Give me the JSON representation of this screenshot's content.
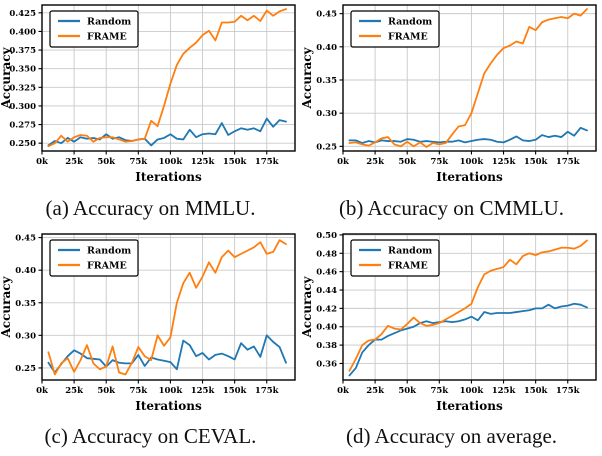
{
  "colors": {
    "random": "#1f77b4",
    "frame": "#ff7f0e",
    "grid": "#c9c9c9",
    "axis": "#000000",
    "background": "#ffffff"
  },
  "legend": {
    "entries": [
      "Random",
      "FRAME"
    ],
    "position": "upper-left"
  },
  "chart_data": [
    {
      "type": "line",
      "caption": "(a) Accuracy on MMLU.",
      "xlabel": "Iterations",
      "ylabel": "Accuracy",
      "grid": true,
      "legend_position": "upper-left",
      "xlim": [
        0,
        197
      ],
      "ylim": [
        0.2395,
        0.4355
      ],
      "xticks": [
        0,
        25,
        50,
        75,
        100,
        125,
        150,
        175
      ],
      "xtick_labels": [
        "0k",
        "25k",
        "50k",
        "75k",
        "100k",
        "125k",
        "150k",
        "175k"
      ],
      "yticks": [
        0.25,
        0.275,
        0.3,
        0.325,
        0.35,
        0.375,
        0.4,
        0.425
      ],
      "ytick_labels": [
        "0.250",
        "0.275",
        "0.300",
        "0.325",
        "0.350",
        "0.375",
        "0.400",
        "0.425"
      ],
      "x": [
        5,
        10,
        15,
        20,
        25,
        30,
        35,
        40,
        45,
        50,
        55,
        60,
        65,
        70,
        75,
        80,
        85,
        90,
        95,
        100,
        105,
        110,
        115,
        120,
        125,
        130,
        135,
        140,
        145,
        150,
        155,
        160,
        165,
        170,
        175,
        180,
        185,
        190
      ],
      "series": [
        {
          "name": "Random",
          "color_key": "random",
          "values": [
            0.247,
            0.253,
            0.25,
            0.257,
            0.252,
            0.258,
            0.256,
            0.257,
            0.255,
            0.262,
            0.256,
            0.258,
            0.254,
            0.253,
            0.255,
            0.256,
            0.247,
            0.255,
            0.257,
            0.262,
            0.256,
            0.255,
            0.268,
            0.258,
            0.262,
            0.263,
            0.262,
            0.277,
            0.261,
            0.266,
            0.27,
            0.268,
            0.27,
            0.266,
            0.283,
            0.272,
            0.281,
            0.279
          ]
        },
        {
          "name": "FRAME",
          "color_key": "frame",
          "values": [
            0.246,
            0.25,
            0.26,
            0.252,
            0.258,
            0.261,
            0.26,
            0.252,
            0.257,
            0.258,
            0.258,
            0.255,
            0.252,
            0.253,
            0.255,
            0.256,
            0.28,
            0.273,
            0.3,
            0.33,
            0.355,
            0.37,
            0.378,
            0.385,
            0.395,
            0.401,
            0.388,
            0.412,
            0.412,
            0.413,
            0.421,
            0.415,
            0.421,
            0.414,
            0.428,
            0.421,
            0.427,
            0.43
          ]
        }
      ]
    },
    {
      "type": "line",
      "caption": "(b) Accuracy on CMMLU.",
      "xlabel": "Iterations",
      "ylabel": "Accuracy",
      "grid": true,
      "legend_position": "upper-left",
      "xlim": [
        0,
        197
      ],
      "ylim": [
        0.243,
        0.463
      ],
      "xticks": [
        0,
        25,
        50,
        75,
        100,
        125,
        150,
        175
      ],
      "xtick_labels": [
        "0k",
        "25k",
        "50k",
        "75k",
        "100k",
        "125k",
        "150k",
        "175k"
      ],
      "yticks": [
        0.25,
        0.3,
        0.35,
        0.4,
        0.45
      ],
      "ytick_labels": [
        "0.25",
        "0.30",
        "0.35",
        "0.40",
        "0.45"
      ],
      "x": [
        5,
        10,
        15,
        20,
        25,
        30,
        35,
        40,
        45,
        50,
        55,
        60,
        65,
        70,
        75,
        80,
        85,
        90,
        95,
        100,
        105,
        110,
        115,
        120,
        125,
        130,
        135,
        140,
        145,
        150,
        155,
        160,
        165,
        170,
        175,
        180,
        185,
        190
      ],
      "series": [
        {
          "name": "Random",
          "color_key": "random",
          "values": [
            0.259,
            0.259,
            0.255,
            0.258,
            0.256,
            0.259,
            0.258,
            0.258,
            0.257,
            0.261,
            0.26,
            0.257,
            0.258,
            0.257,
            0.256,
            0.257,
            0.257,
            0.259,
            0.256,
            0.258,
            0.26,
            0.261,
            0.26,
            0.257,
            0.256,
            0.26,
            0.265,
            0.259,
            0.258,
            0.26,
            0.267,
            0.264,
            0.266,
            0.264,
            0.272,
            0.266,
            0.278,
            0.274
          ]
        },
        {
          "name": "FRAME",
          "color_key": "frame",
          "values": [
            0.255,
            0.256,
            0.253,
            0.251,
            0.256,
            0.262,
            0.264,
            0.253,
            0.25,
            0.257,
            0.25,
            0.256,
            0.249,
            0.255,
            0.253,
            0.255,
            0.268,
            0.28,
            0.282,
            0.3,
            0.33,
            0.36,
            0.375,
            0.388,
            0.398,
            0.402,
            0.408,
            0.405,
            0.43,
            0.425,
            0.437,
            0.441,
            0.443,
            0.445,
            0.443,
            0.45,
            0.447,
            0.457
          ]
        }
      ]
    },
    {
      "type": "line",
      "caption": "(c) Accuracy on CEVAL.",
      "xlabel": "Iterations",
      "ylabel": "Accuracy",
      "grid": true,
      "legend_position": "upper-left",
      "xlim": [
        0,
        197
      ],
      "ylim": [
        0.2315,
        0.4555
      ],
      "xticks": [
        0,
        25,
        50,
        75,
        100,
        125,
        150,
        175
      ],
      "xtick_labels": [
        "0k",
        "25k",
        "50k",
        "75k",
        "100k",
        "125k",
        "150k",
        "175k"
      ],
      "yticks": [
        0.25,
        0.3,
        0.35,
        0.4,
        0.45
      ],
      "ytick_labels": [
        "0.25",
        "0.30",
        "0.35",
        "0.40",
        "0.45"
      ],
      "x": [
        5,
        10,
        15,
        20,
        25,
        30,
        35,
        40,
        45,
        50,
        55,
        60,
        65,
        70,
        75,
        80,
        85,
        90,
        95,
        100,
        105,
        110,
        115,
        120,
        125,
        130,
        135,
        140,
        145,
        150,
        155,
        160,
        165,
        170,
        175,
        180,
        185,
        190
      ],
      "series": [
        {
          "name": "Random",
          "color_key": "random",
          "values": [
            0.258,
            0.243,
            0.256,
            0.268,
            0.277,
            0.272,
            0.265,
            0.264,
            0.263,
            0.252,
            0.262,
            0.258,
            0.257,
            0.257,
            0.27,
            0.253,
            0.266,
            0.263,
            0.261,
            0.259,
            0.248,
            0.292,
            0.285,
            0.268,
            0.273,
            0.263,
            0.27,
            0.272,
            0.268,
            0.263,
            0.288,
            0.278,
            0.283,
            0.267,
            0.3,
            0.29,
            0.282,
            0.258
          ]
        },
        {
          "name": "FRAME",
          "color_key": "frame",
          "values": [
            0.274,
            0.24,
            0.257,
            0.265,
            0.244,
            0.262,
            0.285,
            0.257,
            0.248,
            0.252,
            0.283,
            0.243,
            0.24,
            0.258,
            0.282,
            0.268,
            0.262,
            0.3,
            0.284,
            0.297,
            0.35,
            0.38,
            0.396,
            0.373,
            0.39,
            0.412,
            0.396,
            0.42,
            0.43,
            0.42,
            0.425,
            0.43,
            0.435,
            0.443,
            0.425,
            0.428,
            0.446,
            0.44
          ]
        }
      ]
    },
    {
      "type": "line",
      "caption": "(d) Accuracy on average.",
      "xlabel": "Iterations",
      "ylabel": "Accuracy",
      "grid": true,
      "legend_position": "upper-left",
      "xlim": [
        0,
        197
      ],
      "ylim": [
        0.342,
        0.501
      ],
      "xticks": [
        0,
        25,
        50,
        75,
        100,
        125,
        150,
        175
      ],
      "xtick_labels": [
        "0k",
        "25k",
        "50k",
        "75k",
        "100k",
        "125k",
        "150k",
        "175k"
      ],
      "yticks": [
        0.36,
        0.38,
        0.4,
        0.42,
        0.44,
        0.46,
        0.48,
        0.5
      ],
      "ytick_labels": [
        "0.36",
        "0.38",
        "0.40",
        "0.42",
        "0.44",
        "0.46",
        "0.48",
        "0.50"
      ],
      "x": [
        5,
        10,
        15,
        20,
        25,
        30,
        35,
        40,
        45,
        50,
        55,
        60,
        65,
        70,
        75,
        80,
        85,
        90,
        95,
        100,
        105,
        110,
        115,
        120,
        125,
        130,
        135,
        140,
        145,
        150,
        155,
        160,
        165,
        170,
        175,
        180,
        185,
        190
      ],
      "series": [
        {
          "name": "Random",
          "color_key": "random",
          "values": [
            0.347,
            0.355,
            0.372,
            0.38,
            0.386,
            0.386,
            0.39,
            0.393,
            0.396,
            0.398,
            0.4,
            0.404,
            0.406,
            0.404,
            0.405,
            0.406,
            0.405,
            0.406,
            0.408,
            0.411,
            0.407,
            0.416,
            0.414,
            0.415,
            0.415,
            0.415,
            0.416,
            0.417,
            0.418,
            0.42,
            0.42,
            0.424,
            0.42,
            0.422,
            0.423,
            0.425,
            0.424,
            0.421
          ]
        },
        {
          "name": "FRAME",
          "color_key": "frame",
          "values": [
            0.352,
            0.365,
            0.38,
            0.385,
            0.386,
            0.392,
            0.401,
            0.398,
            0.397,
            0.403,
            0.41,
            0.404,
            0.401,
            0.402,
            0.404,
            0.408,
            0.412,
            0.416,
            0.42,
            0.425,
            0.443,
            0.457,
            0.461,
            0.463,
            0.465,
            0.473,
            0.468,
            0.477,
            0.48,
            0.478,
            0.481,
            0.482,
            0.484,
            0.486,
            0.486,
            0.485,
            0.488,
            0.494
          ]
        }
      ]
    }
  ]
}
